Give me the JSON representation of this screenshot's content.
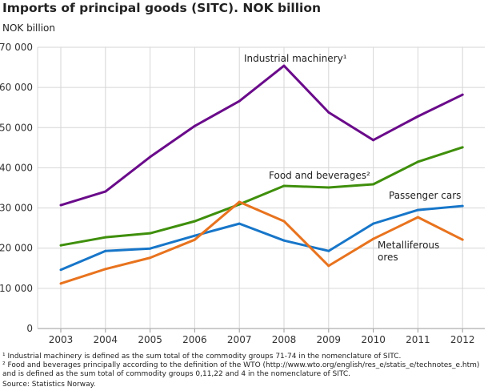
{
  "chart_data": {
    "type": "line",
    "title": "Imports of principal goods (SITC). NOK billion",
    "ylabel": "NOK billion",
    "xlabel": "",
    "x": [
      2003,
      2004,
      2005,
      2006,
      2007,
      2008,
      2009,
      2010,
      2011,
      2012
    ],
    "ylim": [
      0,
      70000
    ],
    "yticks": [
      "0",
      "10 000",
      "20 000",
      "30 000",
      "40 000",
      "50 000",
      "60 000",
      "70 000"
    ],
    "grid": true,
    "series": [
      {
        "name": "Industrial machinery¹",
        "color": "#6a0b8a",
        "values": [
          30700,
          34100,
          42700,
          50400,
          56600,
          65400,
          53800,
          46900,
          52800,
          58200
        ]
      },
      {
        "name": "Food and beverages²",
        "color": "#3f8f0c",
        "values": [
          20700,
          22700,
          23700,
          26700,
          30900,
          35500,
          35100,
          35900,
          41500,
          45100
        ]
      },
      {
        "name": "Passenger cars",
        "color": "#1776c9",
        "values": [
          14600,
          19300,
          19900,
          23100,
          26100,
          21900,
          19300,
          26100,
          29500,
          30500
        ]
      },
      {
        "name": "Metalliferous ores",
        "color": "#e8731e",
        "values": [
          11200,
          14800,
          17600,
          22100,
          31500,
          26700,
          15600,
          22300,
          27700,
          22100
        ]
      }
    ]
  },
  "footnotes": [
    "¹ Industrial machinery is defined as the sum total of the commodity groups 71-74 in the nomenclature of SITC.",
    "² Food and beverages principally according to the definition of the WTO (http://www.wto.org/english/res_e/statis_e/technotes_e.htm) and is defined as the sum total of commodity groups 0,11,22 and 4 in the nomenclature of SITC.",
    "Source: Statistics Norway."
  ]
}
